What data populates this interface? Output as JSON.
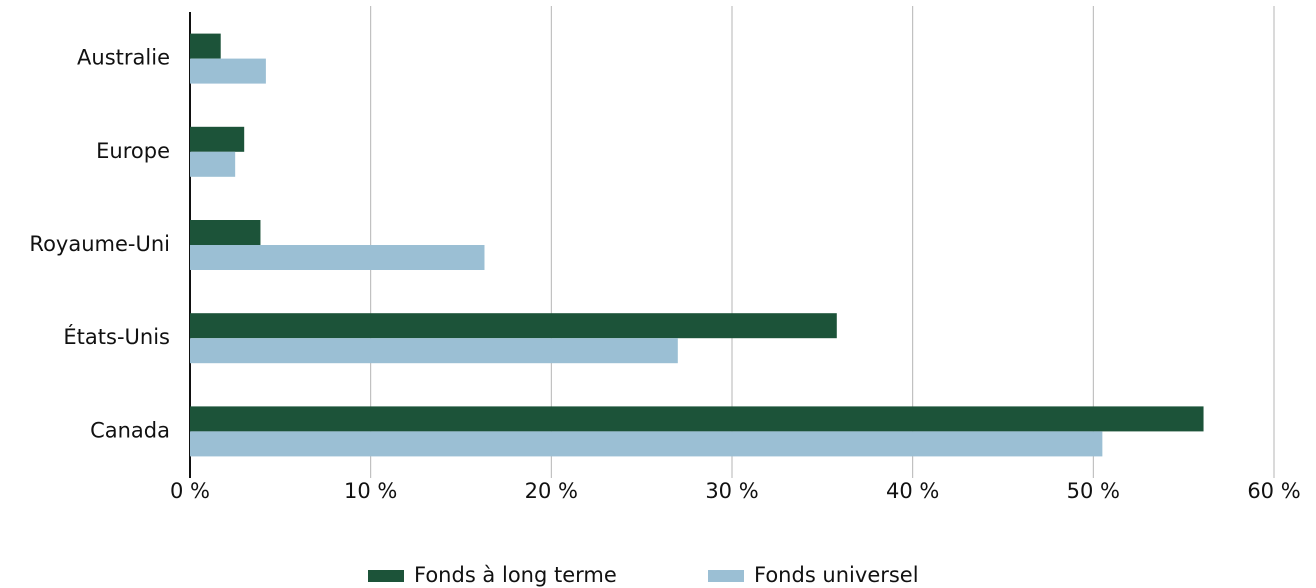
{
  "chart_data": {
    "type": "hbar",
    "categories": [
      "Australie",
      "Europe",
      "Royaume-Uni",
      "États-Unis",
      "Canada"
    ],
    "series": [
      {
        "name": "Fonds à long terme",
        "color": "#1c5339",
        "values": [
          1.7,
          3.0,
          3.9,
          35.8,
          56.1
        ]
      },
      {
        "name": "Fonds universel",
        "color": "#9bbfd4",
        "values": [
          4.2,
          2.5,
          16.3,
          27.0,
          50.5
        ]
      }
    ],
    "xlim": [
      0,
      60
    ],
    "xticks": [
      {
        "value": 0,
        "label": "0 %"
      },
      {
        "value": 10,
        "label": "10 %"
      },
      {
        "value": 20,
        "label": "20 %"
      },
      {
        "value": 30,
        "label": "30 %"
      },
      {
        "value": 40,
        "label": "40 %"
      },
      {
        "value": 50,
        "label": "50 %"
      },
      {
        "value": 60,
        "label": "60 %"
      }
    ],
    "grid": true,
    "legend": "bottom"
  }
}
